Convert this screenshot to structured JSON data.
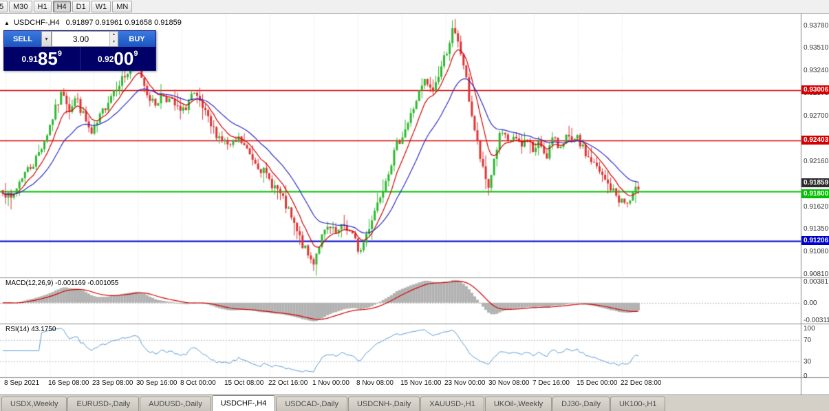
{
  "toolbar": {
    "timeframes": [
      "5",
      "M30",
      "H1",
      "H4",
      "D1",
      "W1",
      "MN"
    ],
    "active": "H4"
  },
  "chart": {
    "collapse_icon": "▲",
    "symbol_title": "USDCHF-,H4",
    "ohlc_text": "0.91897 0.91961 0.91658 0.91859"
  },
  "trade_panel": {
    "sell_label": "SELL",
    "buy_label": "BUY",
    "volume": "3.00",
    "sell_price": {
      "prefix": "0.91",
      "big": "85",
      "sup": "9"
    },
    "buy_price": {
      "prefix": "0.92",
      "big": "00",
      "sup": "9"
    }
  },
  "indicators": {
    "macd": {
      "label": "MACD(12,26,9) -0.001169 -0.001055",
      "axis_labels": [
        "0.00381",
        "0.00",
        "-0.00311"
      ],
      "scale_range": [
        -0.0038,
        0.0045
      ],
      "histogram_color": "#b2b2b2",
      "signal_color": "#d40000"
    },
    "rsi": {
      "label": "RSI(14) 43.1750",
      "axis_labels": [
        "100",
        "70",
        "30",
        "0"
      ],
      "levels": [
        70,
        30
      ],
      "line_color": "#5b9bd5"
    }
  },
  "tabbar": {
    "items": [
      "USDX,Weekly",
      "EURUSD-,Daily",
      "AUDUSD-,Daily",
      "USDCHF-,H4",
      "USDCAD-,Daily",
      "USDCNH-,Daily",
      "XAUUSD-,H1",
      "UKOil-,Weekly",
      "DJ30-,Daily",
      "UK100-,H1"
    ],
    "active": "USDCHF-,H4"
  },
  "chart_data": {
    "type": "candlestick",
    "symbol": "USDCHF-",
    "timeframe": "H4",
    "title": "USDCHF-,H4",
    "ohlc_current": {
      "open": 0.91897,
      "high": 0.91961,
      "low": 0.91658,
      "close": 0.91859
    },
    "bars": 230,
    "y_range": [
      0.9077,
      0.939
    ],
    "y_axis_labels": [
      "0.93780",
      "0.93510",
      "0.93240",
      "0.92970",
      "0.92700",
      "0.92430",
      "0.92160",
      "0.91890",
      "0.91620",
      "0.91350",
      "0.91080",
      "0.90810"
    ],
    "x_labels": [
      "8 Sep 2021",
      "16 Sep 08:00",
      "23 Sep 08:00",
      "30 Sep 16:00",
      "8 Oct 00:00",
      "15 Oct 08:00",
      "22 Oct 16:00",
      "1 Nov 00:00",
      "8 Nov 08:00",
      "15 Nov 16:00",
      "23 Nov 00:00",
      "30 Nov 08:00",
      "7 Dec 16:00",
      "15 Dec 00:00",
      "22 Dec 08:00"
    ],
    "horizontal_lines": [
      {
        "label": "0.93006",
        "price": 0.93006,
        "color": "#d40000",
        "width": 1.5
      },
      {
        "label": "0.92403",
        "price": 0.92403,
        "color": "#d40000",
        "width": 1.5
      },
      {
        "label": "0.91800",
        "price": 0.918,
        "color": "#00c000",
        "width": 2
      },
      {
        "label": "0.91206",
        "price": 0.91206,
        "color": "#0000cc",
        "width": 2
      }
    ],
    "current_price": {
      "label": "0.91859",
      "value": 0.91859,
      "badge_color": "#2b2b2b"
    },
    "candle_up_color": "#2db82d",
    "candle_down_color": "#e03232",
    "moving_averages": [
      {
        "period": 8,
        "color": "#d40000"
      },
      {
        "period": 21,
        "color": "#2a2ac8"
      }
    ],
    "price_path": [
      [
        0.0,
        0.9183
      ],
      [
        0.012,
        0.9168
      ],
      [
        0.03,
        0.9198
      ],
      [
        0.05,
        0.9215
      ],
      [
        0.068,
        0.9245
      ],
      [
        0.085,
        0.9282
      ],
      [
        0.095,
        0.93
      ],
      [
        0.105,
        0.9278
      ],
      [
        0.115,
        0.9292
      ],
      [
        0.128,
        0.9268
      ],
      [
        0.14,
        0.9246
      ],
      [
        0.152,
        0.9266
      ],
      [
        0.165,
        0.9288
      ],
      [
        0.18,
        0.9308
      ],
      [
        0.198,
        0.9322
      ],
      [
        0.212,
        0.9332
      ],
      [
        0.225,
        0.9302
      ],
      [
        0.238,
        0.9282
      ],
      [
        0.252,
        0.9296
      ],
      [
        0.268,
        0.9284
      ],
      [
        0.282,
        0.9272
      ],
      [
        0.298,
        0.9296
      ],
      [
        0.312,
        0.9282
      ],
      [
        0.328,
        0.9256
      ],
      [
        0.342,
        0.9244
      ],
      [
        0.358,
        0.9232
      ],
      [
        0.372,
        0.9242
      ],
      [
        0.388,
        0.9224
      ],
      [
        0.402,
        0.9212
      ],
      [
        0.418,
        0.9194
      ],
      [
        0.432,
        0.9182
      ],
      [
        0.448,
        0.9158
      ],
      [
        0.462,
        0.9132
      ],
      [
        0.478,
        0.9106
      ],
      [
        0.488,
        0.9094
      ],
      [
        0.5,
        0.9122
      ],
      [
        0.512,
        0.9136
      ],
      [
        0.525,
        0.9128
      ],
      [
        0.538,
        0.914
      ],
      [
        0.552,
        0.9124
      ],
      [
        0.562,
        0.9106
      ],
      [
        0.578,
        0.9142
      ],
      [
        0.592,
        0.9172
      ],
      [
        0.608,
        0.9208
      ],
      [
        0.622,
        0.9238
      ],
      [
        0.638,
        0.9262
      ],
      [
        0.652,
        0.9292
      ],
      [
        0.665,
        0.9312
      ],
      [
        0.675,
        0.9296
      ],
      [
        0.688,
        0.9324
      ],
      [
        0.7,
        0.9352
      ],
      [
        0.708,
        0.9372
      ],
      [
        0.715,
        0.9358
      ],
      [
        0.724,
        0.9336
      ],
      [
        0.734,
        0.9288
      ],
      [
        0.744,
        0.9246
      ],
      [
        0.755,
        0.9205
      ],
      [
        0.764,
        0.9184
      ],
      [
        0.774,
        0.9222
      ],
      [
        0.784,
        0.9252
      ],
      [
        0.794,
        0.9236
      ],
      [
        0.804,
        0.9246
      ],
      [
        0.815,
        0.923
      ],
      [
        0.825,
        0.9246
      ],
      [
        0.835,
        0.9226
      ],
      [
        0.845,
        0.9238
      ],
      [
        0.855,
        0.9222
      ],
      [
        0.865,
        0.9242
      ],
      [
        0.875,
        0.9232
      ],
      [
        0.885,
        0.9246
      ],
      [
        0.895,
        0.9236
      ],
      [
        0.905,
        0.9242
      ],
      [
        0.915,
        0.9226
      ],
      [
        0.928,
        0.9214
      ],
      [
        0.942,
        0.9198
      ],
      [
        0.956,
        0.9184
      ],
      [
        0.97,
        0.917
      ],
      [
        0.984,
        0.9164
      ],
      [
        1.0,
        0.9186
      ]
    ]
  }
}
